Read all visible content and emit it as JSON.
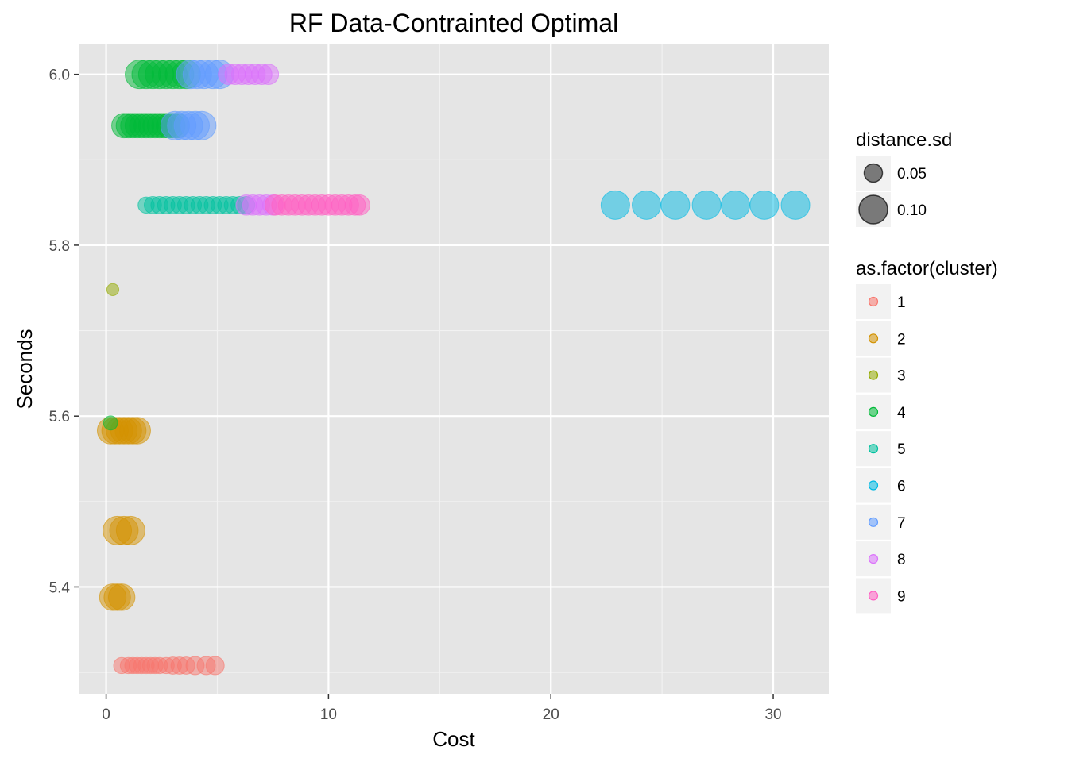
{
  "chart_data": {
    "type": "scatter",
    "title": "RF Data-Contrainted Optimal",
    "xlabel": "Cost",
    "ylabel": "Seconds",
    "xlim": [
      -1.2,
      32.5
    ],
    "ylim": [
      5.275,
      6.035
    ],
    "x_ticks": [
      0,
      10,
      20,
      30
    ],
    "y_ticks": [
      5.4,
      5.6,
      5.8,
      6.0
    ],
    "x_tick_labels": [
      "0",
      "10",
      "20",
      "30"
    ],
    "y_tick_labels": [
      "5.4",
      "5.6",
      "5.8",
      "6.0"
    ],
    "grid": true,
    "legend_position": "right",
    "size_legend": {
      "title": "distance.sd",
      "items": [
        {
          "label": "0.05",
          "value": 0.05
        },
        {
          "label": "0.10",
          "value": 0.1
        }
      ]
    },
    "color_legend": {
      "title": "as.factor(cluster)",
      "items": [
        {
          "label": "1",
          "color": "#F8766D"
        },
        {
          "label": "2",
          "color": "#D39200"
        },
        {
          "label": "3",
          "color": "#93AA00"
        },
        {
          "label": "4",
          "color": "#00BA38"
        },
        {
          "label": "5",
          "color": "#00C19F"
        },
        {
          "label": "6",
          "color": "#00B9E3"
        },
        {
          "label": "7",
          "color": "#619CFF"
        },
        {
          "label": "8",
          "color": "#DB72FB"
        },
        {
          "label": "9",
          "color": "#FF61C3"
        }
      ]
    },
    "series": [
      {
        "name": "1",
        "color": "#F8766D",
        "points": [
          {
            "x": 0.7,
            "y": 5.308,
            "s": 0.04
          },
          {
            "x": 1.0,
            "y": 5.308,
            "s": 0.04
          },
          {
            "x": 1.2,
            "y": 5.308,
            "s": 0.04
          },
          {
            "x": 1.4,
            "y": 5.308,
            "s": 0.04
          },
          {
            "x": 1.6,
            "y": 5.308,
            "s": 0.04
          },
          {
            "x": 1.8,
            "y": 5.308,
            "s": 0.04
          },
          {
            "x": 2.0,
            "y": 5.308,
            "s": 0.04
          },
          {
            "x": 2.2,
            "y": 5.308,
            "s": 0.04
          },
          {
            "x": 2.4,
            "y": 5.308,
            "s": 0.04
          },
          {
            "x": 2.7,
            "y": 5.308,
            "s": 0.04
          },
          {
            "x": 3.0,
            "y": 5.308,
            "s": 0.045
          },
          {
            "x": 3.3,
            "y": 5.308,
            "s": 0.045
          },
          {
            "x": 3.6,
            "y": 5.308,
            "s": 0.045
          },
          {
            "x": 4.0,
            "y": 5.308,
            "s": 0.05
          },
          {
            "x": 4.5,
            "y": 5.308,
            "s": 0.05
          },
          {
            "x": 4.9,
            "y": 5.308,
            "s": 0.05
          }
        ]
      },
      {
        "name": "2",
        "color": "#D39200",
        "points": [
          {
            "x": 0.3,
            "y": 5.388,
            "s": 0.09
          },
          {
            "x": 0.5,
            "y": 5.388,
            "s": 0.09
          },
          {
            "x": 0.7,
            "y": 5.388,
            "s": 0.09
          },
          {
            "x": 0.5,
            "y": 5.466,
            "s": 0.1
          },
          {
            "x": 0.8,
            "y": 5.466,
            "s": 0.1
          },
          {
            "x": 1.1,
            "y": 5.466,
            "s": 0.1
          },
          {
            "x": 0.2,
            "y": 5.583,
            "s": 0.09
          },
          {
            "x": 0.4,
            "y": 5.583,
            "s": 0.09
          },
          {
            "x": 0.6,
            "y": 5.583,
            "s": 0.09
          },
          {
            "x": 0.8,
            "y": 5.583,
            "s": 0.09
          },
          {
            "x": 1.0,
            "y": 5.583,
            "s": 0.09
          },
          {
            "x": 1.2,
            "y": 5.583,
            "s": 0.09
          },
          {
            "x": 1.4,
            "y": 5.583,
            "s": 0.09
          }
        ]
      },
      {
        "name": "3",
        "color": "#93AA00",
        "points": [
          {
            "x": 0.3,
            "y": 5.748,
            "s": 0.02
          }
        ]
      },
      {
        "name": "4",
        "color": "#00BA38",
        "points": [
          {
            "x": 0.2,
            "y": 5.592,
            "s": 0.03
          },
          {
            "x": 0.8,
            "y": 5.94,
            "s": 0.08
          },
          {
            "x": 1.0,
            "y": 5.94,
            "s": 0.08
          },
          {
            "x": 1.2,
            "y": 5.94,
            "s": 0.08
          },
          {
            "x": 1.4,
            "y": 5.94,
            "s": 0.08
          },
          {
            "x": 1.6,
            "y": 5.94,
            "s": 0.08
          },
          {
            "x": 1.8,
            "y": 5.94,
            "s": 0.08
          },
          {
            "x": 2.0,
            "y": 5.94,
            "s": 0.08
          },
          {
            "x": 2.2,
            "y": 5.94,
            "s": 0.08
          },
          {
            "x": 2.4,
            "y": 5.94,
            "s": 0.08
          },
          {
            "x": 2.6,
            "y": 5.94,
            "s": 0.08
          },
          {
            "x": 2.8,
            "y": 5.94,
            "s": 0.08
          },
          {
            "x": 3.0,
            "y": 5.94,
            "s": 0.08
          },
          {
            "x": 3.2,
            "y": 5.94,
            "s": 0.08
          },
          {
            "x": 1.5,
            "y": 6.0,
            "s": 0.1
          },
          {
            "x": 1.8,
            "y": 6.0,
            "s": 0.1
          },
          {
            "x": 2.1,
            "y": 6.0,
            "s": 0.1
          },
          {
            "x": 2.4,
            "y": 6.0,
            "s": 0.1
          },
          {
            "x": 2.7,
            "y": 6.0,
            "s": 0.1
          },
          {
            "x": 3.0,
            "y": 6.0,
            "s": 0.1
          },
          {
            "x": 3.3,
            "y": 6.0,
            "s": 0.1
          },
          {
            "x": 3.6,
            "y": 6.0,
            "s": 0.1
          }
        ]
      },
      {
        "name": "5",
        "color": "#00C19F",
        "points": [
          {
            "x": 1.8,
            "y": 5.847,
            "s": 0.04
          },
          {
            "x": 2.1,
            "y": 5.847,
            "s": 0.045
          },
          {
            "x": 2.4,
            "y": 5.847,
            "s": 0.045
          },
          {
            "x": 2.7,
            "y": 5.847,
            "s": 0.045
          },
          {
            "x": 3.0,
            "y": 5.847,
            "s": 0.045
          },
          {
            "x": 3.3,
            "y": 5.847,
            "s": 0.045
          },
          {
            "x": 3.6,
            "y": 5.847,
            "s": 0.045
          },
          {
            "x": 3.9,
            "y": 5.847,
            "s": 0.045
          },
          {
            "x": 4.2,
            "y": 5.847,
            "s": 0.045
          },
          {
            "x": 4.5,
            "y": 5.847,
            "s": 0.045
          },
          {
            "x": 4.8,
            "y": 5.847,
            "s": 0.045
          },
          {
            "x": 5.1,
            "y": 5.847,
            "s": 0.045
          },
          {
            "x": 5.4,
            "y": 5.847,
            "s": 0.045
          },
          {
            "x": 5.7,
            "y": 5.847,
            "s": 0.045
          },
          {
            "x": 6.0,
            "y": 5.847,
            "s": 0.045
          },
          {
            "x": 6.3,
            "y": 5.847,
            "s": 0.045
          }
        ]
      },
      {
        "name": "6",
        "color": "#00B9E3",
        "points": [
          {
            "x": 22.9,
            "y": 5.847,
            "s": 0.1
          },
          {
            "x": 24.3,
            "y": 5.847,
            "s": 0.1
          },
          {
            "x": 25.6,
            "y": 5.847,
            "s": 0.1
          },
          {
            "x": 27.0,
            "y": 5.847,
            "s": 0.1
          },
          {
            "x": 28.3,
            "y": 5.847,
            "s": 0.1
          },
          {
            "x": 29.6,
            "y": 5.847,
            "s": 0.1
          },
          {
            "x": 31.0,
            "y": 5.847,
            "s": 0.1
          }
        ]
      },
      {
        "name": "7",
        "color": "#619CFF",
        "points": [
          {
            "x": 3.1,
            "y": 5.94,
            "s": 0.1
          },
          {
            "x": 3.4,
            "y": 5.94,
            "s": 0.1
          },
          {
            "x": 3.7,
            "y": 5.94,
            "s": 0.1
          },
          {
            "x": 4.0,
            "y": 5.94,
            "s": 0.1
          },
          {
            "x": 4.3,
            "y": 5.94,
            "s": 0.1
          },
          {
            "x": 3.8,
            "y": 6.0,
            "s": 0.1
          },
          {
            "x": 4.1,
            "y": 6.0,
            "s": 0.1
          },
          {
            "x": 4.4,
            "y": 6.0,
            "s": 0.1
          },
          {
            "x": 4.8,
            "y": 6.0,
            "s": 0.1
          },
          {
            "x": 5.1,
            "y": 6.0,
            "s": 0.1
          }
        ]
      },
      {
        "name": "8",
        "color": "#DB72FB",
        "points": [
          {
            "x": 5.5,
            "y": 6.0,
            "s": 0.06
          },
          {
            "x": 5.8,
            "y": 6.0,
            "s": 0.06
          },
          {
            "x": 6.1,
            "y": 6.0,
            "s": 0.06
          },
          {
            "x": 6.4,
            "y": 6.0,
            "s": 0.06
          },
          {
            "x": 6.7,
            "y": 6.0,
            "s": 0.06
          },
          {
            "x": 7.0,
            "y": 6.0,
            "s": 0.06
          },
          {
            "x": 7.3,
            "y": 6.0,
            "s": 0.06
          },
          {
            "x": 6.3,
            "y": 5.847,
            "s": 0.06
          },
          {
            "x": 6.6,
            "y": 5.847,
            "s": 0.06
          },
          {
            "x": 6.9,
            "y": 5.847,
            "s": 0.06
          },
          {
            "x": 7.2,
            "y": 5.847,
            "s": 0.06
          },
          {
            "x": 7.5,
            "y": 5.847,
            "s": 0.06
          }
        ]
      },
      {
        "name": "9",
        "color": "#FF61C3",
        "points": [
          {
            "x": 7.6,
            "y": 5.847,
            "s": 0.06
          },
          {
            "x": 7.9,
            "y": 5.847,
            "s": 0.06
          },
          {
            "x": 8.2,
            "y": 5.847,
            "s": 0.06
          },
          {
            "x": 8.5,
            "y": 5.847,
            "s": 0.06
          },
          {
            "x": 8.8,
            "y": 5.847,
            "s": 0.06
          },
          {
            "x": 9.1,
            "y": 5.847,
            "s": 0.06
          },
          {
            "x": 9.4,
            "y": 5.847,
            "s": 0.06
          },
          {
            "x": 9.7,
            "y": 5.847,
            "s": 0.06
          },
          {
            "x": 10.0,
            "y": 5.847,
            "s": 0.06
          },
          {
            "x": 10.3,
            "y": 5.847,
            "s": 0.06
          },
          {
            "x": 10.6,
            "y": 5.847,
            "s": 0.06
          },
          {
            "x": 10.9,
            "y": 5.847,
            "s": 0.06
          },
          {
            "x": 11.2,
            "y": 5.847,
            "s": 0.06
          },
          {
            "x": 11.4,
            "y": 5.847,
            "s": 0.06
          }
        ]
      }
    ]
  }
}
